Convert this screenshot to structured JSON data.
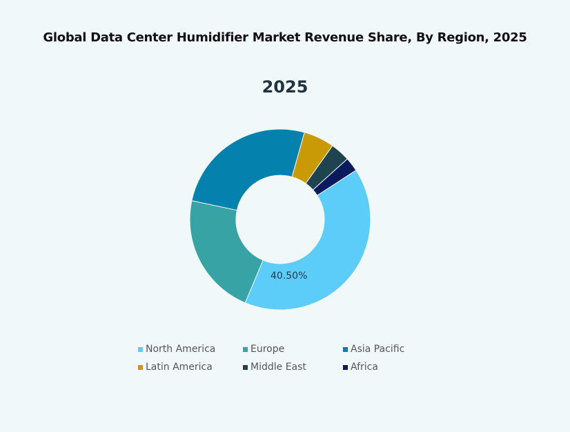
{
  "title": "Global Data Center Humidifier Market Revenue Share, By Region, 2025",
  "subtitle": "2025",
  "data_label": "40.50%",
  "legend": [
    {
      "label": "North America",
      "color": "#5ccdf8"
    },
    {
      "label": "Europe",
      "color": "#37a3a5"
    },
    {
      "label": "Asia Pacific",
      "color": "#0581ad"
    },
    {
      "label": "Latin America",
      "color": "#c99a06"
    },
    {
      "label": "Middle East",
      "color": "#1f4450"
    },
    {
      "label": "Africa",
      "color": "#0b1a5c"
    }
  ],
  "chart_data": {
    "type": "pie",
    "variant": "donut",
    "title": "Global Data Center Humidifier Market Revenue Share, By Region, 2025",
    "subtitle": "2025",
    "categories": [
      "North America",
      "Europe",
      "Asia Pacific",
      "Latin America",
      "Middle East",
      "Africa"
    ],
    "values": [
      40.5,
      22.0,
      26.0,
      5.5,
      3.5,
      2.5
    ],
    "unit": "%",
    "colors": [
      "#5ccdf8",
      "#37a3a5",
      "#0581ad",
      "#c99a06",
      "#1f4450",
      "#0b1a5c"
    ],
    "annotations": [
      {
        "category": "North America",
        "text": "40.50%"
      }
    ],
    "legend_position": "bottom"
  }
}
